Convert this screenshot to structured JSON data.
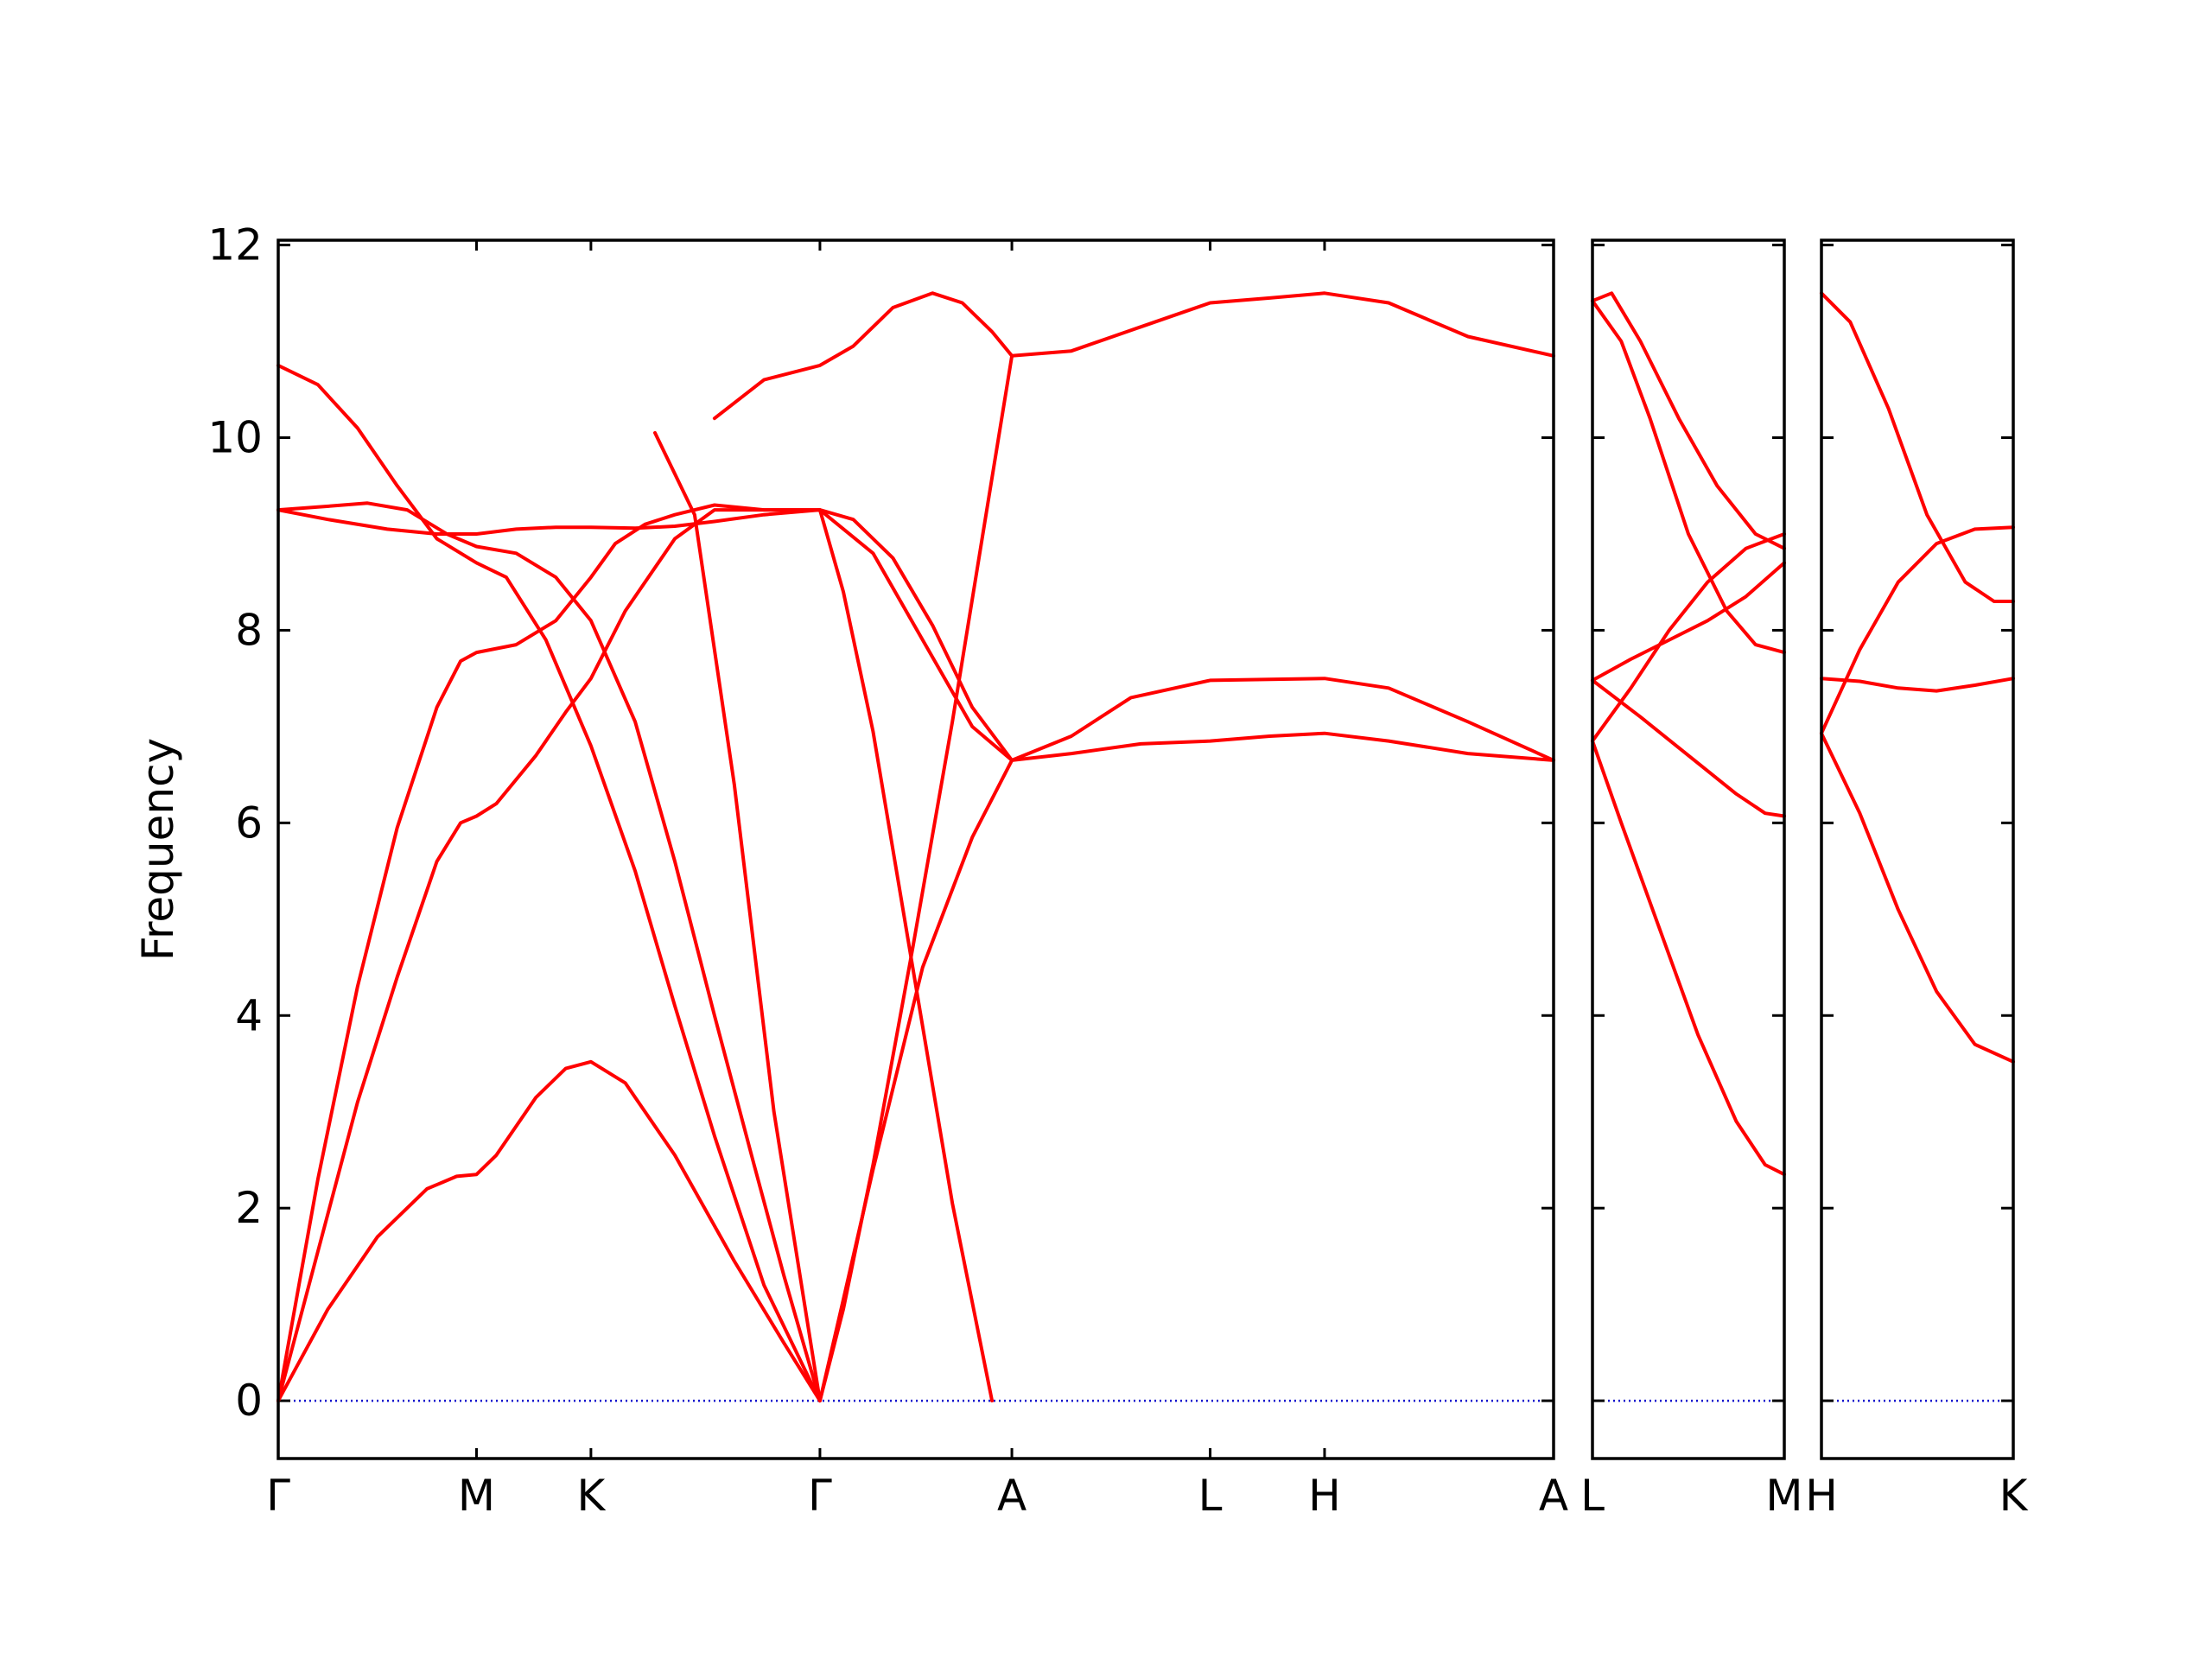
{
  "chart_data": {
    "type": "line",
    "ylabel": "Frequency",
    "ylim": [
      -0.6,
      12.05
    ],
    "yticks": [
      0,
      2,
      4,
      6,
      8,
      10,
      12
    ],
    "ytick_labels": [
      "0",
      "2",
      "4",
      "6",
      "8",
      "10",
      "12"
    ],
    "grid": false,
    "colors": {
      "bands": "#ff0000",
      "zero_line": "#0000cc",
      "axes": "#000000"
    },
    "zero_line": {
      "y": 0,
      "style": "dotted"
    },
    "panels": [
      {
        "name": "panel-1",
        "kpoints": [
          {
            "label": "Γ",
            "x": 0
          },
          {
            "label": "M",
            "x": 1
          },
          {
            "label": "K",
            "x": 1.577
          },
          {
            "label": "Γ",
            "x": 2.732
          },
          {
            "label": "A",
            "x": 3.7
          },
          {
            "label": "L",
            "x": 4.7
          },
          {
            "label": "H",
            "x": 5.277
          },
          {
            "label": "A",
            "x": 6.432
          }
        ],
        "xlim": [
          0,
          6.432
        ],
        "series": [
          {
            "values": [
              [
                0,
                0
              ],
              [
                0.25,
                0.95
              ],
              [
                0.5,
                1.7
              ],
              [
                0.75,
                2.2
              ],
              [
                0.9,
                2.33
              ],
              [
                1,
                2.35
              ],
              [
                1.1,
                2.55
              ],
              [
                1.3,
                3.15
              ],
              [
                1.45,
                3.45
              ],
              [
                1.577,
                3.52
              ],
              [
                1.75,
                3.3
              ],
              [
                2.0,
                2.55
              ],
              [
                2.3,
                1.45
              ],
              [
                2.55,
                0.6
              ],
              [
                2.732,
                0
              ]
            ]
          },
          {
            "values": [
              [
                0,
                0
              ],
              [
                0.2,
                1.55
              ],
              [
                0.4,
                3.1
              ],
              [
                0.6,
                4.4
              ],
              [
                0.8,
                5.6
              ],
              [
                0.92,
                6.0
              ],
              [
                1,
                6.07
              ],
              [
                1.1,
                6.2
              ],
              [
                1.3,
                6.7
              ],
              [
                1.45,
                7.15
              ],
              [
                1.577,
                7.5
              ],
              [
                1.75,
                8.2
              ],
              [
                2.0,
                8.95
              ],
              [
                2.2,
                9.25
              ],
              [
                2.45,
                9.25
              ],
              [
                2.732,
                9.25
              ],
              [
                3.0,
                8.8
              ],
              [
                3.25,
                7.9
              ],
              [
                3.5,
                7.0
              ],
              [
                3.7,
                6.65
              ],
              [
                4.0,
                6.72
              ],
              [
                4.35,
                6.82
              ],
              [
                4.7,
                6.85
              ],
              [
                5.0,
                6.9
              ],
              [
                5.277,
                6.93
              ],
              [
                5.6,
                6.85
              ],
              [
                6.0,
                6.72
              ],
              [
                6.432,
                6.65
              ]
            ]
          },
          {
            "values": [
              [
                0,
                0
              ],
              [
                0.2,
                2.3
              ],
              [
                0.4,
                4.3
              ],
              [
                0.6,
                5.95
              ],
              [
                0.8,
                7.2
              ],
              [
                0.92,
                7.68
              ],
              [
                1,
                7.77
              ],
              [
                1.2,
                7.85
              ],
              [
                1.4,
                8.1
              ],
              [
                1.577,
                8.55
              ],
              [
                1.7,
                8.9
              ],
              [
                1.85,
                9.1
              ],
              [
                2.0,
                9.2
              ],
              [
                2.2,
                9.3
              ],
              [
                2.45,
                9.25
              ],
              [
                2.732,
                9.25
              ],
              [
                2.9,
                9.15
              ],
              [
                3.1,
                8.75
              ],
              [
                3.3,
                8.05
              ],
              [
                3.5,
                7.2
              ],
              [
                3.7,
                6.65
              ],
              [
                4.0,
                6.9
              ],
              [
                4.3,
                7.3
              ],
              [
                4.7,
                7.48
              ],
              [
                5.0,
                7.49
              ],
              [
                5.277,
                7.5
              ],
              [
                5.6,
                7.4
              ],
              [
                6.0,
                7.05
              ],
              [
                6.432,
                6.65
              ]
            ]
          },
          {
            "values": [
              [
                0,
                9.25
              ],
              [
                0.2,
                9.28
              ],
              [
                0.45,
                9.32
              ],
              [
                0.65,
                9.25
              ],
              [
                0.85,
                9.0
              ],
              [
                1,
                8.87
              ],
              [
                1.2,
                8.8
              ],
              [
                1.4,
                8.55
              ],
              [
                1.577,
                8.1
              ],
              [
                1.8,
                7.05
              ],
              [
                2.0,
                5.6
              ],
              [
                2.2,
                4.0
              ],
              [
                2.4,
                2.45
              ],
              [
                2.55,
                1.3
              ],
              [
                2.732,
                0
              ],
              [
                2.85,
                1.05
              ],
              [
                3.0,
                2.4
              ],
              [
                3.25,
                4.5
              ],
              [
                3.5,
                5.85
              ],
              [
                3.7,
                6.65
              ]
            ]
          },
          {
            "values": [
              [
                0,
                9.25
              ],
              [
                0.25,
                9.15
              ],
              [
                0.55,
                9.05
              ],
              [
                0.8,
                9.0
              ],
              [
                1,
                9.0
              ],
              [
                1.2,
                9.05
              ],
              [
                1.4,
                9.07
              ],
              [
                1.577,
                9.07
              ],
              [
                1.8,
                9.06
              ],
              [
                2.0,
                9.08
              ],
              [
                2.2,
                9.13
              ],
              [
                2.45,
                9.2
              ],
              [
                2.732,
                9.25
              ],
              [
                2.85,
                8.4
              ],
              [
                3.0,
                6.95
              ],
              [
                3.2,
                4.5
              ],
              [
                3.4,
                2.05
              ],
              [
                3.6,
                0.0
              ]
            ]
          },
          {
            "values": [
              [
                0,
                10.75
              ],
              [
                0.2,
                10.55
              ],
              [
                0.4,
                10.1
              ],
              [
                0.6,
                9.5
              ],
              [
                0.8,
                8.95
              ],
              [
                1,
                8.7
              ],
              [
                1.15,
                8.55
              ],
              [
                1.35,
                7.9
              ],
              [
                1.577,
                6.8
              ],
              [
                1.8,
                5.5
              ],
              [
                2.0,
                4.1
              ],
              [
                2.2,
                2.75
              ],
              [
                2.45,
                1.2
              ],
              [
                2.732,
                0
              ],
              [
                2.85,
                0.95
              ],
              [
                3.0,
                2.45
              ],
              [
                3.2,
                4.7
              ],
              [
                3.4,
                7.05
              ],
              [
                3.55,
                8.95
              ],
              [
                3.7,
                10.85
              ]
            ]
          },
          {
            "values": [
              [
                0,
                10.75
              ]
            ]
          },
          {
            "values": [
              [
                2.2,
                10.2
              ],
              [
                2.45,
                10.6
              ],
              [
                2.732,
                10.75
              ],
              [
                2.9,
                10.95
              ],
              [
                3.1,
                11.35
              ],
              [
                3.3,
                11.5
              ],
              [
                3.45,
                11.4
              ],
              [
                3.6,
                11.1
              ],
              [
                3.7,
                10.85
              ],
              [
                4.0,
                10.9
              ],
              [
                4.35,
                11.15
              ],
              [
                4.7,
                11.4
              ],
              [
                5.0,
                11.45
              ],
              [
                5.277,
                11.5
              ],
              [
                5.6,
                11.4
              ],
              [
                6.0,
                11.05
              ],
              [
                6.432,
                10.85
              ]
            ]
          },
          {
            "values": [
              [
                2.732,
                0
              ],
              [
                2.5,
                3.0
              ],
              [
                2.3,
                6.4
              ],
              [
                2.1,
                9.2
              ],
              [
                1.9,
                10.05
              ]
            ]
          }
        ]
      },
      {
        "name": "panel-2",
        "kpoints": [
          {
            "label": "L",
            "x": 0
          },
          {
            "label": "M",
            "x": 1
          }
        ],
        "xlim": [
          0,
          1
        ],
        "series": [
          {
            "values": [
              [
                0,
                11.42
              ],
              [
                0.1,
                11.5
              ],
              [
                0.25,
                11.0
              ],
              [
                0.45,
                10.2
              ],
              [
                0.65,
                9.5
              ],
              [
                0.85,
                9.0
              ],
              [
                1,
                8.85
              ]
            ]
          },
          {
            "values": [
              [
                0,
                11.42
              ],
              [
                0.15,
                11.0
              ],
              [
                0.3,
                10.2
              ],
              [
                0.5,
                9.0
              ],
              [
                0.7,
                8.2
              ],
              [
                0.85,
                7.85
              ],
              [
                1,
                7.77
              ]
            ]
          },
          {
            "values": [
              [
                0,
                7.48
              ],
              [
                0.2,
                7.7
              ],
              [
                0.4,
                7.9
              ],
              [
                0.6,
                8.1
              ],
              [
                0.8,
                8.35
              ],
              [
                1,
                8.7
              ]
            ]
          },
          {
            "values": [
              [
                0,
                6.85
              ],
              [
                0.2,
                7.4
              ],
              [
                0.4,
                8.0
              ],
              [
                0.6,
                8.5
              ],
              [
                0.8,
                8.85
              ],
              [
                1,
                9.0
              ]
            ]
          },
          {
            "values": [
              [
                0,
                7.48
              ],
              [
                0.25,
                7.1
              ],
              [
                0.5,
                6.7
              ],
              [
                0.75,
                6.3
              ],
              [
                0.9,
                6.1
              ],
              [
                1,
                6.07
              ]
            ]
          },
          {
            "values": [
              [
                0,
                6.85
              ],
              [
                0.15,
                6.0
              ],
              [
                0.35,
                4.9
              ],
              [
                0.55,
                3.8
              ],
              [
                0.75,
                2.9
              ],
              [
                0.9,
                2.45
              ],
              [
                1,
                2.35
              ]
            ]
          }
        ]
      },
      {
        "name": "panel-3",
        "kpoints": [
          {
            "label": "H",
            "x": 0
          },
          {
            "label": "K",
            "x": 1
          }
        ],
        "xlim": [
          0,
          1
        ],
        "series": [
          {
            "values": [
              [
                0,
                11.5
              ],
              [
                0.15,
                11.2
              ],
              [
                0.35,
                10.3
              ],
              [
                0.55,
                9.2
              ],
              [
                0.75,
                8.5
              ],
              [
                0.9,
                8.3
              ],
              [
                1,
                8.3
              ]
            ]
          },
          {
            "values": [
              [
                0,
                7.5
              ],
              [
                0.2,
                7.47
              ],
              [
                0.4,
                7.4
              ],
              [
                0.6,
                7.37
              ],
              [
                0.8,
                7.43
              ],
              [
                1,
                7.5
              ]
            ]
          },
          {
            "values": [
              [
                0,
                6.93
              ],
              [
                0.2,
                7.8
              ],
              [
                0.4,
                8.5
              ],
              [
                0.6,
                8.9
              ],
              [
                0.8,
                9.05
              ],
              [
                1,
                9.07
              ]
            ]
          },
          {
            "values": [
              [
                0,
                6.93
              ],
              [
                0.2,
                6.1
              ],
              [
                0.4,
                5.1
              ],
              [
                0.6,
                4.25
              ],
              [
                0.8,
                3.7
              ],
              [
                1,
                3.52
              ]
            ]
          }
        ]
      }
    ]
  }
}
